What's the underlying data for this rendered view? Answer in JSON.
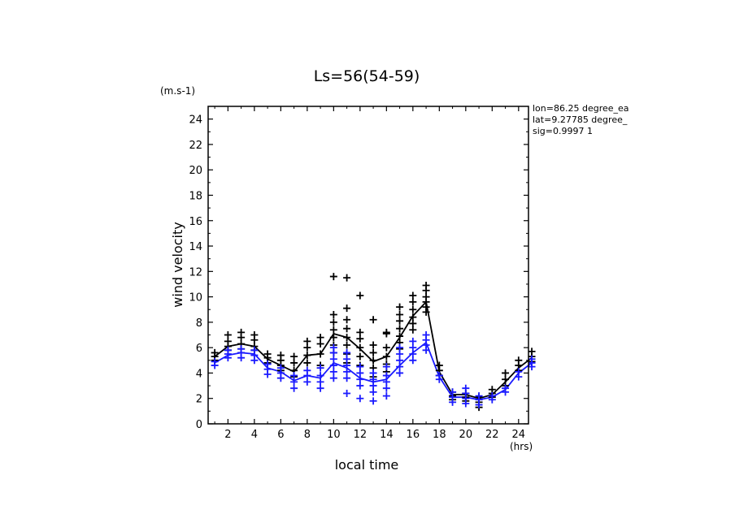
{
  "chart_data": {
    "type": "scatter",
    "title": "Ls=56(54-59)",
    "xlabel": "local time",
    "ylabel": "wind velocity",
    "x_unit": "(hrs)",
    "y_unit": "(m.s-1)",
    "xlim": [
      0.5,
      24.75
    ],
    "ylim": [
      0,
      25
    ],
    "x_ticks": [
      2,
      4,
      6,
      8,
      10,
      12,
      14,
      16,
      18,
      20,
      22,
      24
    ],
    "y_ticks": [
      0,
      2,
      4,
      6,
      8,
      10,
      12,
      14,
      16,
      18,
      20,
      22,
      24
    ],
    "info": [
      "lon=86.25 degree_ea",
      "lat=9.27785 degree_",
      "sig=0.9997 1"
    ],
    "series": [
      {
        "color": "#000000",
        "mean_line": {
          "x": [
            1,
            2,
            3,
            4,
            5,
            6,
            7,
            8,
            9,
            10,
            11,
            12,
            13,
            14,
            15,
            16,
            17,
            18,
            19,
            20,
            21,
            22,
            23,
            24,
            25
          ],
          "y": [
            5.3,
            6.1,
            6.3,
            6.1,
            5.1,
            4.6,
            4.1,
            5.4,
            5.5,
            7.1,
            6.8,
            5.9,
            4.9,
            5.3,
            6.8,
            8.5,
            9.6,
            4.1,
            2.3,
            2.3,
            2.0,
            2.3,
            3.3,
            4.4,
            5.2
          ]
        },
        "points": [
          [
            1,
            5.0
          ],
          [
            1,
            5.3
          ],
          [
            1,
            5.6
          ],
          [
            2,
            5.8
          ],
          [
            2,
            6.1
          ],
          [
            2,
            6.5
          ],
          [
            2,
            7.0
          ],
          [
            3,
            5.9
          ],
          [
            3,
            6.3
          ],
          [
            3,
            6.8
          ],
          [
            3,
            7.2
          ],
          [
            4,
            5.8
          ],
          [
            4,
            6.1
          ],
          [
            4,
            6.6
          ],
          [
            4,
            7.0
          ],
          [
            5,
            4.8
          ],
          [
            5,
            5.2
          ],
          [
            5,
            5.5
          ],
          [
            6,
            4.2
          ],
          [
            6,
            4.6
          ],
          [
            6,
            5.0
          ],
          [
            6,
            5.4
          ],
          [
            7,
            3.7
          ],
          [
            7,
            4.2
          ],
          [
            7,
            4.8
          ],
          [
            7,
            5.3
          ],
          [
            8,
            4.8
          ],
          [
            8,
            5.4
          ],
          [
            8,
            6.0
          ],
          [
            8,
            6.5
          ],
          [
            9,
            4.6
          ],
          [
            9,
            5.5
          ],
          [
            9,
            6.3
          ],
          [
            9,
            6.8
          ],
          [
            10,
            5.6
          ],
          [
            10,
            6.2
          ],
          [
            10,
            6.8
          ],
          [
            10,
            7.4
          ],
          [
            10,
            8.0
          ],
          [
            10,
            8.6
          ],
          [
            10,
            11.6
          ],
          [
            11,
            4.8
          ],
          [
            11,
            5.5
          ],
          [
            11,
            6.2
          ],
          [
            11,
            6.8
          ],
          [
            11,
            7.5
          ],
          [
            11,
            8.2
          ],
          [
            11,
            9.1
          ],
          [
            11,
            11.5
          ],
          [
            12,
            4.6
          ],
          [
            12,
            5.3
          ],
          [
            12,
            6.0
          ],
          [
            12,
            6.7
          ],
          [
            12,
            7.2
          ],
          [
            12,
            10.1
          ],
          [
            13,
            3.7
          ],
          [
            13,
            4.4
          ],
          [
            13,
            5.0
          ],
          [
            13,
            5.6
          ],
          [
            13,
            6.2
          ],
          [
            13,
            8.2
          ],
          [
            14,
            4.1
          ],
          [
            14,
            4.7
          ],
          [
            14,
            5.3
          ],
          [
            14,
            6.0
          ],
          [
            14,
            7.1
          ],
          [
            14,
            7.2
          ],
          [
            15,
            5.9
          ],
          [
            15,
            6.4
          ],
          [
            15,
            6.9
          ],
          [
            15,
            7.5
          ],
          [
            15,
            8.1
          ],
          [
            15,
            8.6
          ],
          [
            15,
            9.2
          ],
          [
            16,
            7.4
          ],
          [
            16,
            7.9
          ],
          [
            16,
            8.4
          ],
          [
            16,
            9.0
          ],
          [
            16,
            9.6
          ],
          [
            16,
            10.1
          ],
          [
            17,
            8.8
          ],
          [
            17,
            9.2
          ],
          [
            17,
            9.6
          ],
          [
            17,
            10.0
          ],
          [
            17,
            10.5
          ],
          [
            17,
            10.9
          ],
          [
            18,
            3.8
          ],
          [
            18,
            4.2
          ],
          [
            18,
            4.6
          ],
          [
            19,
            1.9
          ],
          [
            19,
            2.2
          ],
          [
            19,
            2.5
          ],
          [
            20,
            1.8
          ],
          [
            20,
            2.1
          ],
          [
            20,
            2.4
          ],
          [
            21,
            1.3
          ],
          [
            21,
            1.7
          ],
          [
            21,
            2.1
          ],
          [
            22,
            2.1
          ],
          [
            22,
            2.4
          ],
          [
            22,
            2.7
          ],
          [
            23,
            3.0
          ],
          [
            23,
            3.5
          ],
          [
            23,
            4.0
          ],
          [
            24,
            4.2
          ],
          [
            24,
            4.6
          ],
          [
            24,
            5.0
          ],
          [
            25,
            4.9
          ],
          [
            25,
            5.3
          ],
          [
            25,
            5.7
          ]
        ]
      },
      {
        "color": "#1a1aff",
        "mean_line": {
          "x": [
            1,
            2,
            3,
            4,
            5,
            6,
            7,
            8,
            9,
            10,
            11,
            12,
            13,
            14,
            15,
            16,
            17,
            18,
            19,
            20,
            21,
            22,
            23,
            24,
            25
          ],
          "y": [
            4.8,
            5.4,
            5.6,
            5.5,
            4.4,
            4.1,
            3.4,
            3.8,
            3.6,
            4.8,
            4.4,
            3.6,
            3.3,
            3.5,
            4.6,
            5.6,
            6.4,
            3.7,
            2.1,
            2.1,
            1.9,
            2.1,
            2.7,
            4.0,
            4.8
          ]
        },
        "points": [
          [
            1,
            4.6
          ],
          [
            1,
            4.9
          ],
          [
            2,
            5.2
          ],
          [
            2,
            5.5
          ],
          [
            2,
            5.8
          ],
          [
            3,
            5.2
          ],
          [
            3,
            5.6
          ],
          [
            3,
            5.9
          ],
          [
            4,
            5.0
          ],
          [
            4,
            5.4
          ],
          [
            4,
            5.8
          ],
          [
            5,
            3.9
          ],
          [
            5,
            4.3
          ],
          [
            5,
            4.7
          ],
          [
            6,
            3.6
          ],
          [
            6,
            4.0
          ],
          [
            6,
            4.4
          ],
          [
            7,
            2.8
          ],
          [
            7,
            3.3
          ],
          [
            7,
            3.8
          ],
          [
            8,
            3.3
          ],
          [
            8,
            3.8
          ],
          [
            8,
            4.2
          ],
          [
            9,
            2.8
          ],
          [
            9,
            3.3
          ],
          [
            9,
            3.8
          ],
          [
            9,
            4.4
          ],
          [
            10,
            3.6
          ],
          [
            10,
            4.1
          ],
          [
            10,
            4.6
          ],
          [
            10,
            5.1
          ],
          [
            10,
            5.6
          ],
          [
            10,
            6.0
          ],
          [
            11,
            2.4
          ],
          [
            11,
            3.6
          ],
          [
            11,
            4.1
          ],
          [
            11,
            4.6
          ],
          [
            11,
            5.1
          ],
          [
            11,
            5.6
          ],
          [
            12,
            2.0
          ],
          [
            12,
            3.0
          ],
          [
            12,
            3.5
          ],
          [
            12,
            4.0
          ],
          [
            12,
            4.5
          ],
          [
            13,
            1.8
          ],
          [
            13,
            2.5
          ],
          [
            13,
            3.0
          ],
          [
            13,
            3.5
          ],
          [
            13,
            4.0
          ],
          [
            14,
            2.2
          ],
          [
            14,
            2.8
          ],
          [
            14,
            3.3
          ],
          [
            14,
            3.8
          ],
          [
            14,
            4.5
          ],
          [
            15,
            4.0
          ],
          [
            15,
            4.5
          ],
          [
            15,
            5.0
          ],
          [
            15,
            5.5
          ],
          [
            15,
            6.0
          ],
          [
            16,
            5.0
          ],
          [
            16,
            5.5
          ],
          [
            16,
            6.0
          ],
          [
            16,
            6.5
          ],
          [
            17,
            5.8
          ],
          [
            17,
            6.2
          ],
          [
            17,
            6.6
          ],
          [
            17,
            7.0
          ],
          [
            18,
            3.5
          ],
          [
            18,
            3.8
          ],
          [
            19,
            1.7
          ],
          [
            19,
            2.1
          ],
          [
            19,
            2.5
          ],
          [
            20,
            1.6
          ],
          [
            20,
            2.0
          ],
          [
            20,
            2.4
          ],
          [
            20,
            2.8
          ],
          [
            21,
            1.5
          ],
          [
            21,
            1.9
          ],
          [
            21,
            2.2
          ],
          [
            22,
            1.9
          ],
          [
            22,
            2.2
          ],
          [
            23,
            2.5
          ],
          [
            23,
            2.8
          ],
          [
            24,
            3.7
          ],
          [
            24,
            4.1
          ],
          [
            25,
            4.5
          ],
          [
            25,
            4.8
          ],
          [
            25,
            5.1
          ]
        ]
      }
    ]
  }
}
